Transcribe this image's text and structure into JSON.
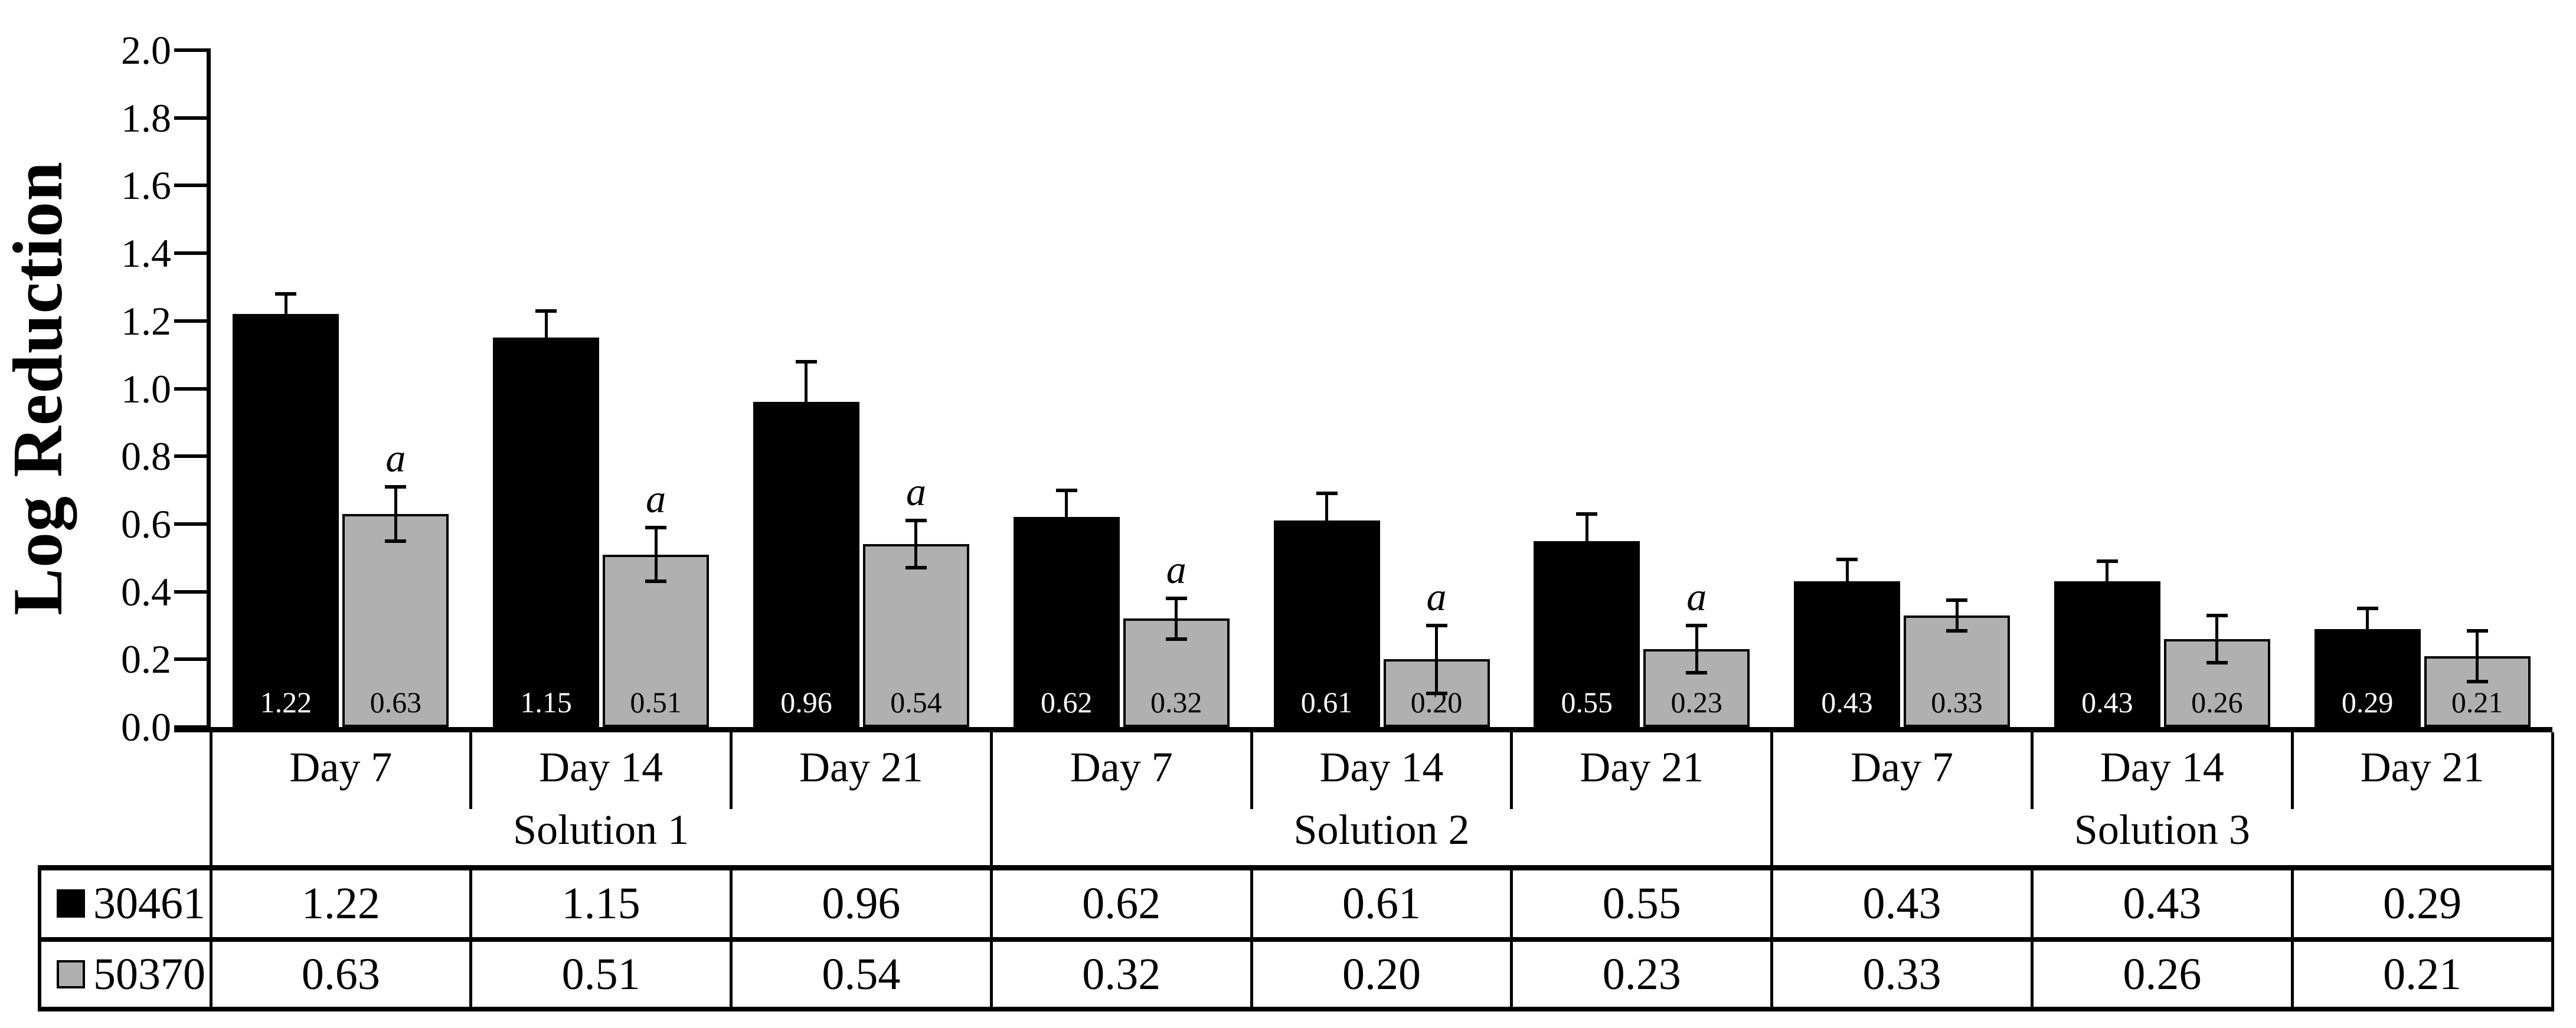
{
  "chart_data": {
    "type": "bar",
    "title": "",
    "xlabel": "",
    "ylabel": "Log Reduction",
    "ylim": [
      0.0,
      2.0
    ],
    "ytick_step": 0.2,
    "grid": false,
    "legend_position": "table-left",
    "group_labels": [
      "Day 7",
      "Day 14",
      "Day 21",
      "Day 7",
      "Day 14",
      "Day 21",
      "Day 7",
      "Day 14",
      "Day 21"
    ],
    "super_groups": [
      "Solution 1",
      "Solution 2",
      "Solution 3"
    ],
    "annotation_letter": "a",
    "annotation_note": "italic letter shown above 50370 bars in Solution 1 and Solution 2",
    "colors": {
      "black_series": "#000000",
      "gray_series": "#b0b0b0",
      "axis": "#000000",
      "background": "#ffffff"
    },
    "series": [
      {
        "name": "30461",
        "color": "#000000",
        "label_color": "#ffffff",
        "values": [
          1.22,
          1.15,
          0.96,
          0.62,
          0.61,
          0.55,
          0.43,
          0.43,
          0.29
        ],
        "errors": [
          0.06,
          0.08,
          0.12,
          0.08,
          0.08,
          0.08,
          0.065,
          0.06,
          0.06
        ],
        "a_flags": [
          false,
          false,
          false,
          false,
          false,
          false,
          false,
          false,
          false
        ]
      },
      {
        "name": "50370",
        "color": "#b0b0b0",
        "label_color": "#000000",
        "values": [
          0.63,
          0.51,
          0.54,
          0.32,
          0.2,
          0.23,
          0.33,
          0.26,
          0.21
        ],
        "errors": [
          0.08,
          0.08,
          0.07,
          0.06,
          0.1,
          0.07,
          0.045,
          0.07,
          0.075
        ],
        "a_flags": [
          true,
          true,
          true,
          true,
          true,
          true,
          false,
          false,
          false
        ]
      }
    ]
  }
}
